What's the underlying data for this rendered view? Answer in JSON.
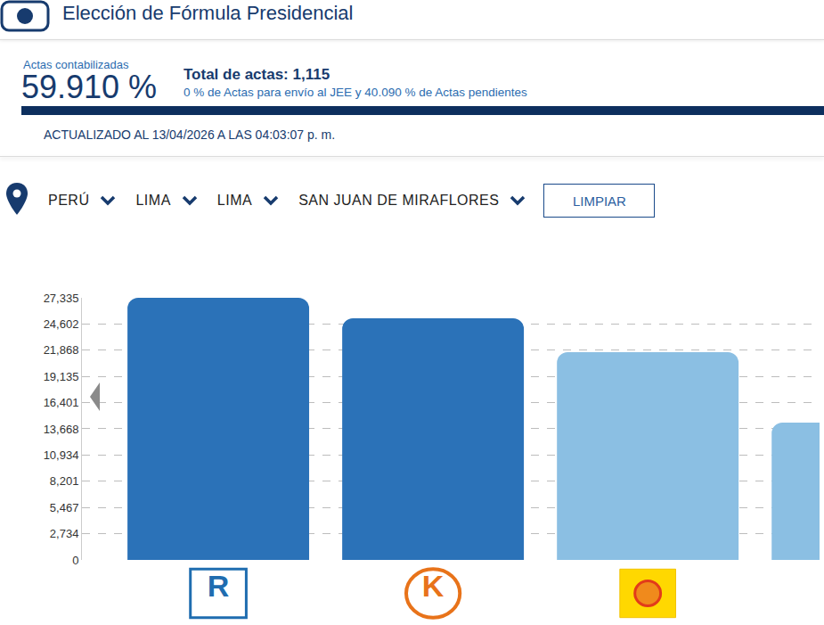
{
  "header": {
    "title": "Elección de Fórmula Presidencial",
    "actas_label": "Actas contabilizadas",
    "actas_percent": "59.910 %",
    "total": "Total de actas: 1,115",
    "detail": "0 % de Actas para envío al JEE y 40.090 % de Actas pendientes",
    "updated": "ACTUALIZADO AL 13/04/2026 A LAS 04:03:07 p. m."
  },
  "filters": [
    "PERÚ",
    "LIMA",
    "LIMA",
    "SAN JUAN DE MIRAFLORES"
  ],
  "button": "LIMPIAR",
  "chart_data": {
    "type": "bar",
    "categories": [
      "R",
      "K",
      null,
      null
    ],
    "values": [
      27335,
      25200,
      21660,
      14320
    ],
    "colors": [
      "#2b72b8",
      "#2b72b8",
      "#8bbfe3",
      "#8bbfe3"
    ],
    "ylim": [
      0,
      27335
    ],
    "yticks": [
      0,
      {
        "value": 2734,
        "label": "2,734"
      },
      {
        "value": 5467,
        "label": "5,467"
      },
      {
        "value": 8201,
        "label": "8,201"
      },
      {
        "value": 10934,
        "label": "10,934"
      },
      {
        "value": 13668,
        "label": "13,668"
      },
      {
        "value": 16401,
        "label": "16,401"
      },
      {
        "value": 19135,
        "label": "19,135"
      },
      {
        "value": 21868,
        "label": "21,868"
      },
      {
        "value": 24602,
        "label": "24,602"
      },
      {
        "value": 27335,
        "label": "27,335"
      }
    ],
    "grid": true,
    "data_labels": false
  }
}
